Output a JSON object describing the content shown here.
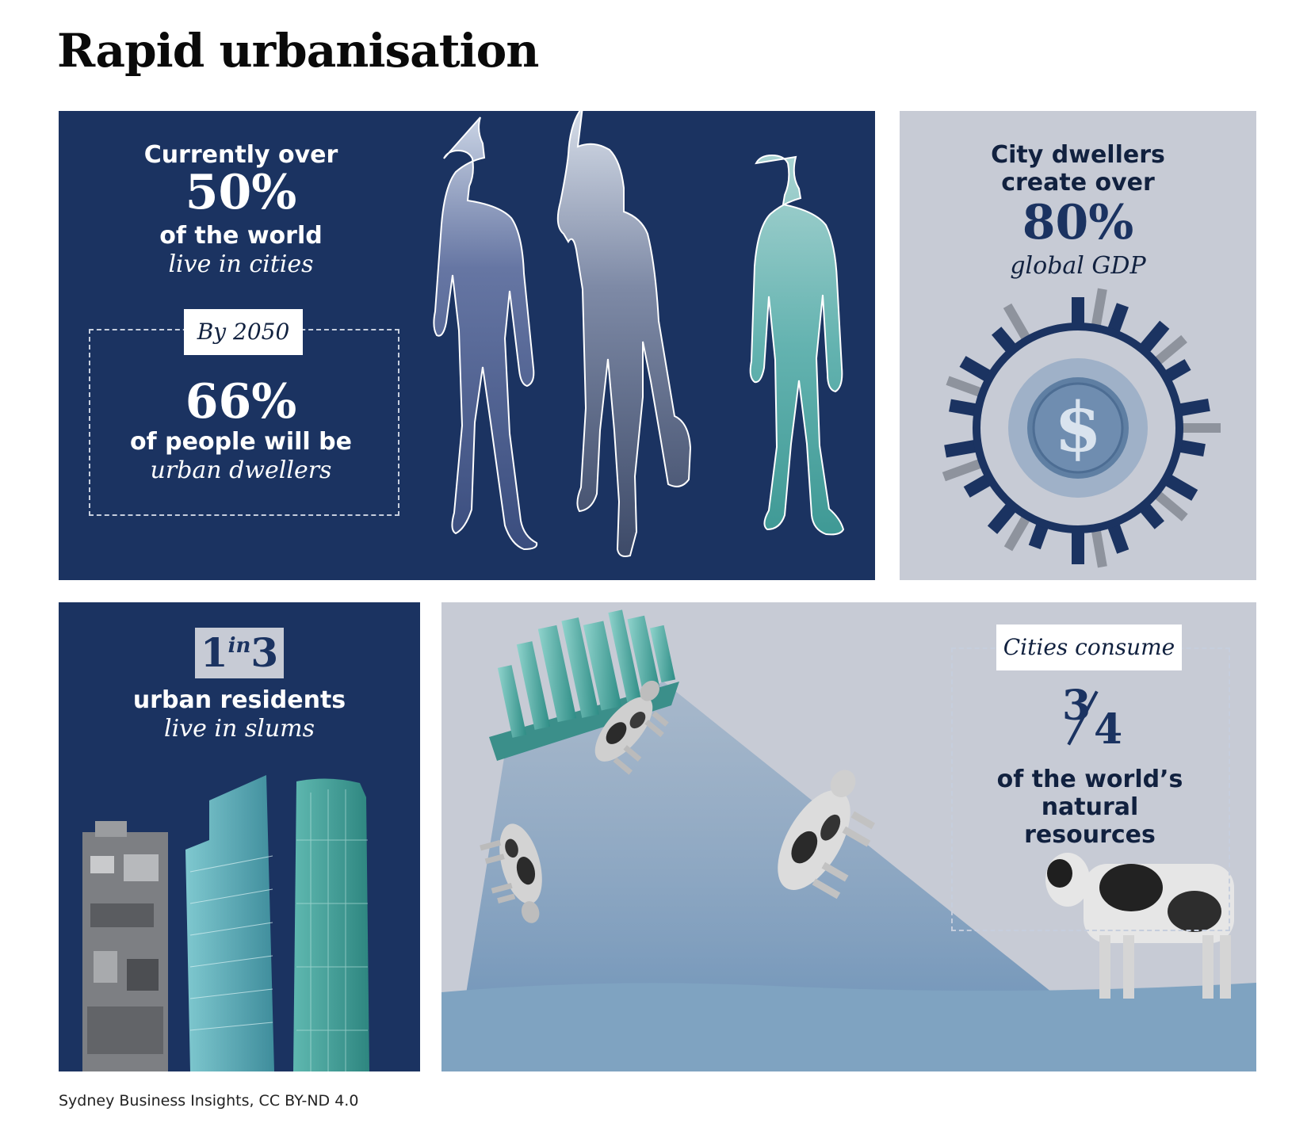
{
  "title": "Rapid urbanisation",
  "panel_population": {
    "line1": "Currently over",
    "stat": "50%",
    "line2": "of the world",
    "line3": "live in cities",
    "tag": "By 2050",
    "stat2": "66%",
    "line4": "of people will be",
    "line5": "urban dwellers"
  },
  "panel_gdp": {
    "line1": "City dwellers",
    "line2": "create over",
    "stat": "80%",
    "line3": "global GDP",
    "symbol": "$"
  },
  "panel_slums": {
    "stat_a": "1",
    "stat_in": "in",
    "stat_b": "3",
    "line1": "urban residents",
    "line2": "live in slums"
  },
  "panel_resources": {
    "tag": "Cities consume",
    "fraction_num": "3",
    "fraction_den": "4",
    "line1": "of the world’s",
    "line2": "natural",
    "line3": "resources"
  },
  "source": "Sydney Business Insights, CC BY-ND 4.0",
  "colors": {
    "navy": "#1b3361",
    "grey_panel": "#c7cbd5",
    "teal": "#5fb8b4",
    "steel_blue": "#6e93b8"
  },
  "icons": [
    "person-silhouette",
    "dollar-coin",
    "city-ring",
    "skyscraper",
    "cow"
  ]
}
